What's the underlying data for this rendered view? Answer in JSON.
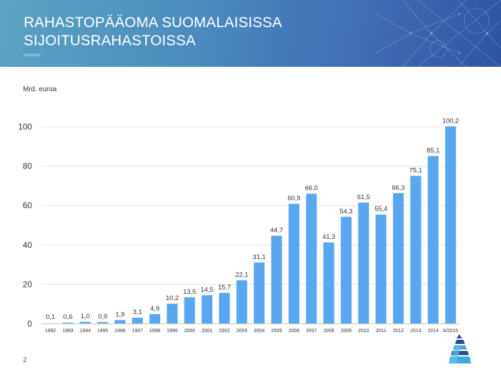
{
  "slide": {
    "title_line1": "RAHASTOPÄÄOMA SUOMALAISISSA",
    "title_line2": "SIJOITUSRAHASTOISSA",
    "page_number": "2",
    "colors": {
      "header_start": "#5ba2c3",
      "header_end": "#2f53a3",
      "accent": "#64c5e8",
      "bar": "#59a7ee"
    }
  },
  "chart_data": {
    "type": "bar",
    "unit_label": "Mrd. euroa",
    "categories": [
      "1992",
      "1993",
      "1994",
      "1995",
      "1996",
      "1997",
      "1998",
      "1999",
      "2000",
      "2001",
      "2002",
      "2003",
      "2004",
      "2005",
      "2006",
      "2007",
      "2008",
      "2009",
      "2010",
      "2011",
      "2012",
      "2013",
      "2014",
      "6/2015"
    ],
    "values": [
      0.1,
      0.6,
      1.0,
      0.9,
      1.9,
      3.1,
      4.9,
      10.2,
      13.5,
      14.5,
      15.7,
      22.1,
      31.1,
      44.7,
      60.9,
      66.0,
      41.3,
      54.3,
      61.5,
      55.4,
      66.3,
      75.1,
      85.1,
      100.2
    ],
    "value_labels": [
      "0,1",
      "0,6",
      "1,0",
      "0,9",
      "1,9",
      "3,1",
      "4,9",
      "10,2",
      "13,5",
      "14,5",
      "15,7",
      "22,1",
      "31,1",
      "44,7",
      "60,9",
      "66,0",
      "41,3",
      "54,3",
      "61,5",
      "55,4",
      "66,3",
      "75,1",
      "85,1",
      "100,2"
    ],
    "yticks": [
      0,
      20,
      40,
      60,
      80,
      100
    ],
    "ytick_labels": [
      "0",
      "20",
      "40",
      "60",
      "80",
      "100"
    ],
    "ylim": [
      0,
      100
    ],
    "grid": true,
    "legend": "none"
  }
}
